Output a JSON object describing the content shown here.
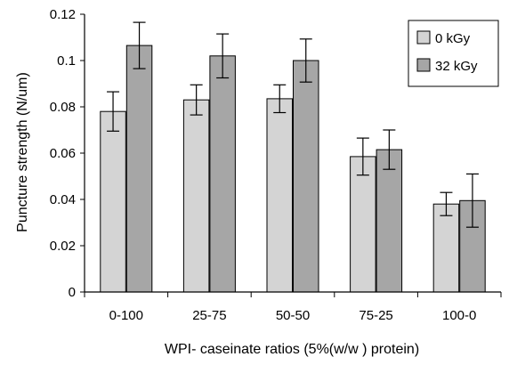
{
  "chart_data": {
    "type": "bar",
    "title": "",
    "xlabel": "WPI- caseinate ratios (5%(w/w ) protein)",
    "ylabel": "Puncture strength (N/um)",
    "categories": [
      "0-100",
      "25-75",
      "50-50",
      "75-25",
      "100-0"
    ],
    "ylim": [
      0,
      0.12
    ],
    "yticks": [
      0,
      0.02,
      0.04,
      0.06,
      0.08,
      0.1,
      0.12
    ],
    "ytick_labels": [
      "0",
      "0.02",
      "0.04",
      "0.06",
      "0.08",
      "0.1",
      "0.12"
    ],
    "grid": false,
    "legend_position": "top-right",
    "series": [
      {
        "name": "0 kGy",
        "color": "#d4d4d4",
        "values": [
          0.078,
          0.083,
          0.0835,
          0.0585,
          0.038
        ],
        "error": [
          0.0085,
          0.0065,
          0.006,
          0.008,
          0.005
        ]
      },
      {
        "name": "32 kGy",
        "color": "#a6a6a6",
        "values": [
          0.1065,
          0.102,
          0.1,
          0.0615,
          0.0395
        ],
        "error": [
          0.01,
          0.0095,
          0.0093,
          0.0085,
          0.0115
        ]
      }
    ]
  }
}
